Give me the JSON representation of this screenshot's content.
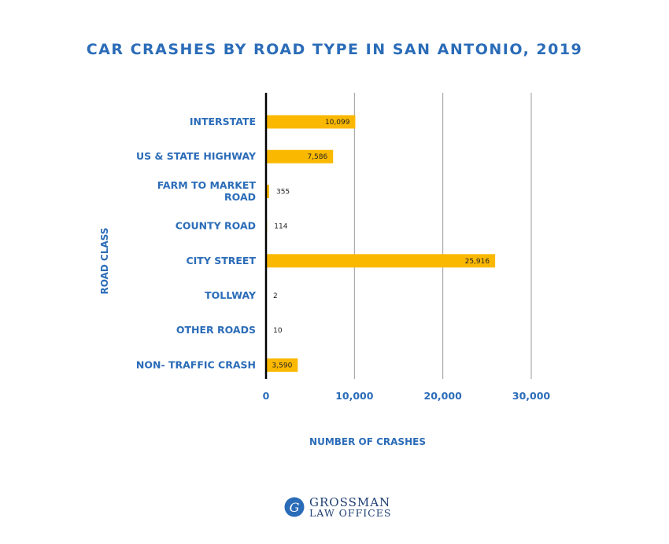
{
  "chart_data": {
    "type": "bar",
    "orientation": "horizontal",
    "title": "CAR CRASHES BY ROAD TYPE IN SAN ANTONIO, 2019",
    "xlabel": "NUMBER OF CRASHES",
    "ylabel": "ROAD CLASS",
    "categories": [
      "INTERSTATE",
      "US & STATE HIGHWAY",
      "FARM TO MARKET ROAD",
      "COUNTY ROAD",
      "CITY STREET",
      "TOLLWAY",
      "OTHER ROADS",
      "NON- TRAFFIC CRASH"
    ],
    "values": [
      10099,
      7586,
      355,
      114,
      25916,
      2,
      10,
      3590
    ],
    "value_labels": [
      "10,099",
      "7,586",
      "355",
      "114",
      "25,916",
      "2",
      "10",
      "3,590"
    ],
    "xlim": [
      0,
      30000
    ],
    "xticks": [
      0,
      10000,
      20000,
      30000
    ],
    "xtick_labels": [
      "0",
      "10,000",
      "20,000",
      "30,000"
    ],
    "grid": "vertical",
    "bar_color": "#fbb800"
  },
  "logo": {
    "line1": "GROSSMAN",
    "line2": "LAW OFFICES",
    "emblem_letter": "G"
  },
  "colors": {
    "title": "#2b6cb8",
    "bar": "#fbb800",
    "grid": "#9a9a9a",
    "axis": "#000000"
  }
}
